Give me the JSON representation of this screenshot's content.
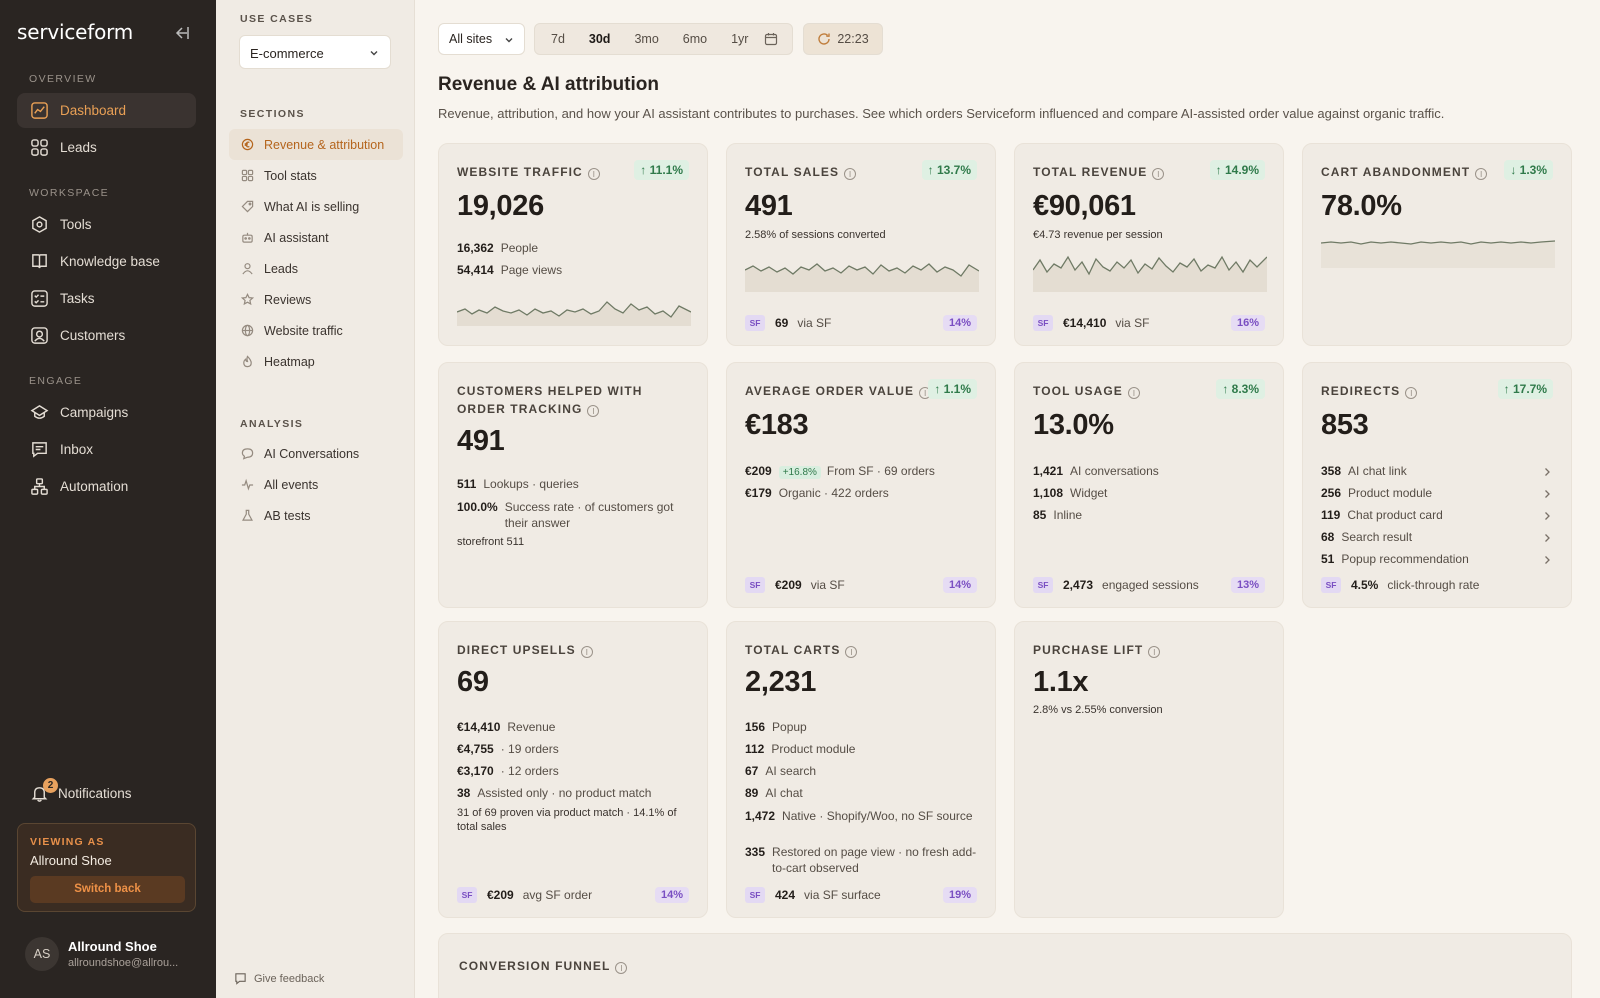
{
  "brand": "serviceform",
  "sidebar": {
    "overview_label": "OVERVIEW",
    "items_overview": [
      {
        "label": "Dashboard",
        "icon": "chart-icon"
      },
      {
        "label": "Leads",
        "icon": "grid-icon"
      }
    ],
    "workspace_label": "WORKSPACE",
    "items_workspace": [
      {
        "label": "Tools",
        "icon": "hexagon-icon"
      },
      {
        "label": "Knowledge base",
        "icon": "book-icon"
      },
      {
        "label": "Tasks",
        "icon": "checklist-icon"
      },
      {
        "label": "Customers",
        "icon": "user-square-icon"
      }
    ],
    "engage_label": "ENGAGE",
    "items_engage": [
      {
        "label": "Campaigns",
        "icon": "campaign-icon"
      },
      {
        "label": "Inbox",
        "icon": "chat-icon"
      },
      {
        "label": "Automation",
        "icon": "automation-icon"
      }
    ],
    "notifications_label": "Notifications",
    "notifications_count": "2",
    "viewing_as_label": "VIEWING AS",
    "viewing_as_name": "Allround Shoe",
    "switch_back": "Switch back",
    "user_initials": "AS",
    "user_name": "Allround Shoe",
    "user_email": "allroundshoe@allrou..."
  },
  "subnav": {
    "use_cases_label": "USE CASES",
    "use_case_value": "E-commerce",
    "sections_label": "SECTIONS",
    "sections": [
      "Revenue & attribution",
      "Tool stats",
      "What AI is selling",
      "AI assistant",
      "Leads",
      "Reviews",
      "Website traffic",
      "Heatmap"
    ],
    "analysis_label": "ANALYSIS",
    "analysis": [
      "AI Conversations",
      "All events",
      "AB tests"
    ],
    "feedback": "Give feedback"
  },
  "toolbar": {
    "site": "All sites",
    "ranges": [
      "7d",
      "30d",
      "3mo",
      "6mo",
      "1yr"
    ],
    "active_range": "30d",
    "refresh_time": "22:23"
  },
  "page": {
    "title": "Revenue & AI attribution",
    "description": "Revenue, attribution, and how your AI assistant contributes to purchases. See which orders Serviceform influenced and compare AI-assisted order value against organic traffic."
  },
  "cards": {
    "traffic": {
      "title": "WEBSITE TRAFFIC",
      "change": "↑ 11.1%",
      "value": "19,026",
      "rows": [
        {
          "n": "16,362",
          "l": "People"
        },
        {
          "n": "54,414",
          "l": "Page views"
        }
      ]
    },
    "sales": {
      "title": "TOTAL SALES",
      "change": "↑ 13.7%",
      "value": "491",
      "sub": "2.58% of sessions converted",
      "foot_sf": "SF",
      "foot_val": "69",
      "foot_label": "via SF",
      "foot_pct": "14%"
    },
    "revenue": {
      "title": "TOTAL REVENUE",
      "change": "↑ 14.9%",
      "value": "€90,061",
      "sub": "€4.73 revenue per session",
      "foot_sf": "SF",
      "foot_val": "€14,410",
      "foot_label": "via SF",
      "foot_pct": "16%"
    },
    "cart_abandon": {
      "title": "CART ABANDONMENT",
      "change": "↓ 1.3%",
      "value": "78.0%"
    },
    "order_tracking": {
      "title": "CUSTOMERS HELPED WITH ORDER TRACKING",
      "value": "491",
      "rows": [
        {
          "n": "511",
          "l": "Lookups · queries"
        },
        {
          "n": "100.0%",
          "l": "Success rate · of customers got their answer"
        }
      ],
      "note": "storefront 511"
    },
    "aov": {
      "title": "AVERAGE ORDER VALUE",
      "change": "↑ 1.1%",
      "value": "€183",
      "rows": [
        {
          "n": "€209",
          "pill": "+16.8%",
          "l": "From SF · 69 orders"
        },
        {
          "n": "€179",
          "l": "Organic · 422 orders"
        }
      ],
      "foot_sf": "SF",
      "foot_val": "€209",
      "foot_label": "via SF",
      "foot_pct": "14%"
    },
    "tool_usage": {
      "title": "TOOL USAGE",
      "change": "↑ 8.3%",
      "value": "13.0%",
      "rows": [
        {
          "n": "1,421",
          "l": "AI conversations"
        },
        {
          "n": "1,108",
          "l": "Widget"
        },
        {
          "n": "85",
          "l": "Inline"
        }
      ],
      "foot_sf": "SF",
      "foot_val": "2,473",
      "foot_label": "engaged sessions",
      "foot_pct": "13%"
    },
    "redirects": {
      "title": "REDIRECTS",
      "change": "↑ 17.7%",
      "value": "853",
      "rows": [
        {
          "n": "358",
          "l": "AI chat link"
        },
        {
          "n": "256",
          "l": "Product module"
        },
        {
          "n": "119",
          "l": "Chat product card"
        },
        {
          "n": "68",
          "l": "Search result"
        },
        {
          "n": "51",
          "l": "Popup recommendation"
        }
      ],
      "foot_sf": "SF",
      "foot_val": "4.5%",
      "foot_label": "click-through rate"
    },
    "upsells": {
      "title": "DIRECT UPSELLS",
      "value": "69",
      "rows": [
        {
          "n": "€14,410",
          "l": "Revenue"
        },
        {
          "n": "€4,755",
          "l": "· 19 orders"
        },
        {
          "n": "€3,170",
          "l": "· 12 orders"
        },
        {
          "n": "38",
          "l": "Assisted only · no product match"
        }
      ],
      "note": "31 of 69 proven via product match · 14.1% of total sales",
      "foot_sf": "SF",
      "foot_val": "€209",
      "foot_label": "avg SF order",
      "foot_pct": "14%"
    },
    "carts": {
      "title": "TOTAL CARTS",
      "value": "2,231",
      "rows": [
        {
          "n": "156",
          "l": "Popup"
        },
        {
          "n": "112",
          "l": "Product module"
        },
        {
          "n": "67",
          "l": "AI search"
        },
        {
          "n": "89",
          "l": "AI chat"
        },
        {
          "n": "1,472",
          "l": "Native · Shopify/Woo, no SF source"
        },
        {
          "n": "335",
          "l": "Restored on page view · no fresh add-to-cart observed"
        }
      ],
      "foot_sf": "SF",
      "foot_val": "424",
      "foot_label": "via SF surface",
      "foot_pct": "19%"
    },
    "lift": {
      "title": "PURCHASE LIFT",
      "value": "1.1x",
      "sub": "2.8% vs 2.55% conversion"
    },
    "funnel": {
      "title": "CONVERSION FUNNEL"
    }
  },
  "colors": {
    "accent": "#e9a055",
    "sidebar_bg": "#2a2522",
    "positive": "#2f7a4a",
    "sf_purple": "#7a4fc2"
  }
}
